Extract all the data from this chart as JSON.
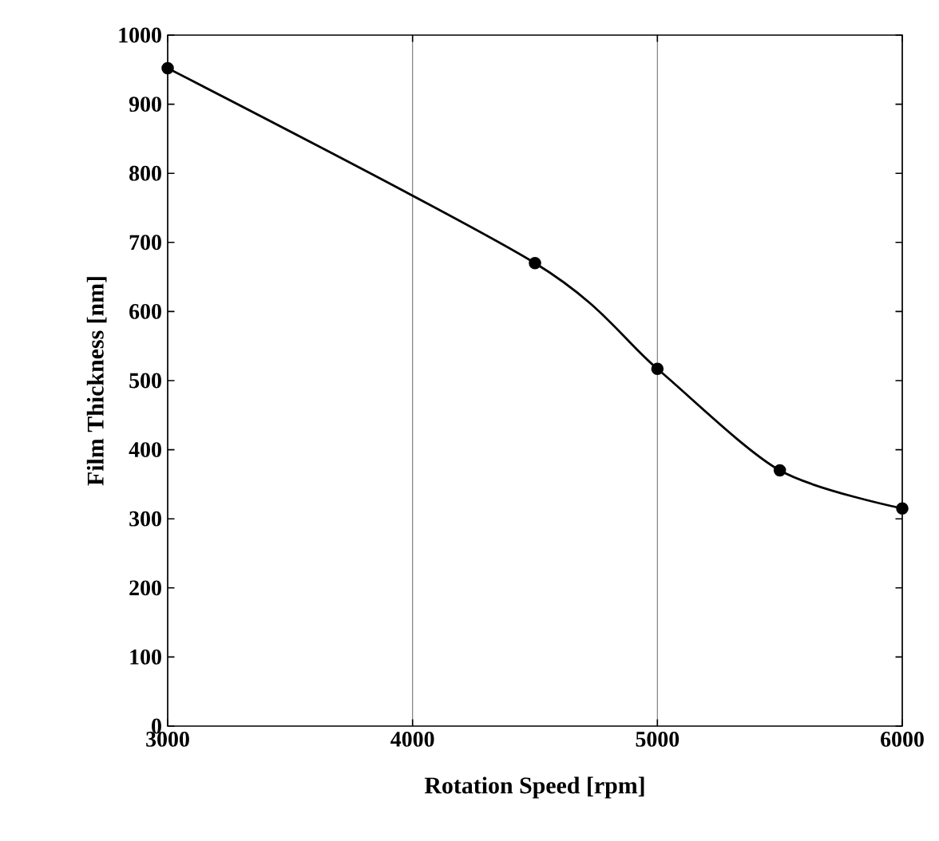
{
  "chart_data": {
    "type": "line",
    "xlabel": "Rotation Speed [rpm]",
    "ylabel": "Film Thickness [nm]",
    "x": [
      3000,
      4500,
      5000,
      5500,
      6000
    ],
    "series": [
      {
        "color": "#000000",
        "values": [
          952,
          670,
          517,
          370,
          315
        ]
      }
    ],
    "xlim": [
      3000,
      6000
    ],
    "ylim": [
      0,
      1000
    ],
    "xticks": [
      3000,
      4000,
      5000,
      6000
    ],
    "yticks": [
      0,
      100,
      200,
      300,
      400,
      500,
      600,
      700,
      800,
      900,
      1000
    ],
    "grid": "x",
    "marker": "circle",
    "line_style": "solid"
  }
}
